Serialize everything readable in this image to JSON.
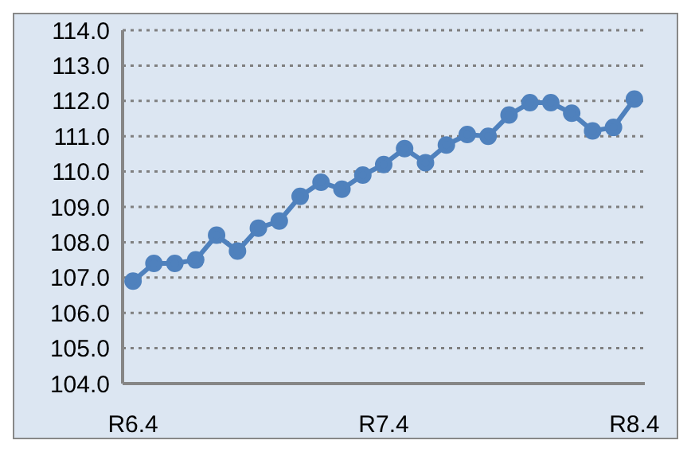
{
  "chart_data": {
    "type": "line",
    "categories": [
      "R6.4",
      null,
      null,
      null,
      null,
      null,
      null,
      null,
      null,
      null,
      null,
      null,
      "R7.4",
      null,
      null,
      null,
      null,
      null,
      null,
      null,
      null,
      null,
      null,
      null,
      "R8.4"
    ],
    "series": [
      {
        "color": "#4f81bd",
        "values": [
          106.9,
          107.4,
          107.4,
          107.5,
          108.2,
          107.75,
          108.4,
          108.6,
          109.3,
          109.7,
          109.5,
          109.9,
          110.2,
          110.65,
          110.25,
          110.75,
          111.05,
          111.0,
          111.6,
          111.95,
          111.95,
          111.65,
          111.15,
          111.25,
          112.05
        ]
      }
    ],
    "ylim": [
      104,
      114
    ],
    "yticks": [
      {
        "value": 104,
        "label": "104.0"
      },
      {
        "value": 105,
        "label": "105.0"
      },
      {
        "value": 106,
        "label": "106.0"
      },
      {
        "value": 107,
        "label": "107.0"
      },
      {
        "value": 108,
        "label": "108.0"
      },
      {
        "value": 109,
        "label": "109.0"
      },
      {
        "value": 110,
        "label": "110.0"
      },
      {
        "value": 111,
        "label": "111.0"
      },
      {
        "value": 112,
        "label": "112.0"
      },
      {
        "value": 113,
        "label": "113.0"
      },
      {
        "value": 114,
        "label": "114.0"
      }
    ],
    "grid": "y",
    "marker": "circle",
    "line_style": "solid",
    "legend": false
  }
}
